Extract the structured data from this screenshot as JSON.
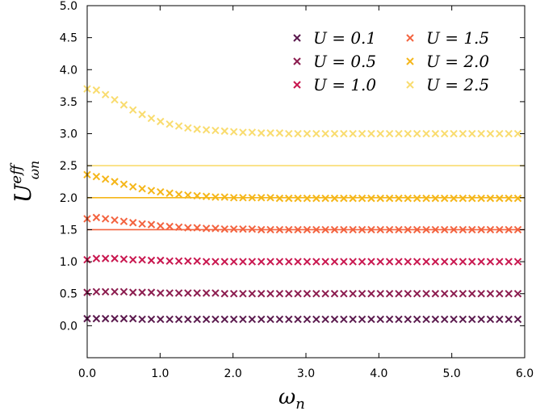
{
  "chart_data": {
    "type": "scatter",
    "xlabel": "ω",
    "xlabel_sub": "n",
    "ylabel": "U",
    "ylabel_sup": "eff",
    "ylabel_sub": "ωn",
    "xlim": [
      0,
      6
    ],
    "ylim": [
      -0.5,
      5.0
    ],
    "xticks": [
      0,
      1,
      2,
      3,
      4,
      5,
      6
    ],
    "xtick_labels": [
      "0.0",
      "1.0",
      "2.0",
      "3.0",
      "4.0",
      "5.0",
      "6.0"
    ],
    "yticks": [
      0,
      0.5,
      1,
      1.5,
      2,
      2.5,
      3,
      3.5,
      4,
      4.5,
      5
    ],
    "ytick_labels": [
      "0.0",
      "0.5",
      "1.0",
      "1.5",
      "2.0",
      "2.5",
      "3.0",
      "3.5",
      "4.0",
      "4.5",
      "5.0"
    ],
    "grid": false,
    "legend_position": "top-right",
    "marker": "×",
    "x": [
      0.0,
      0.126,
      0.251,
      0.377,
      0.503,
      0.628,
      0.754,
      0.88,
      1.005,
      1.131,
      1.257,
      1.382,
      1.508,
      1.634,
      1.759,
      1.885,
      2.011,
      2.136,
      2.262,
      2.388,
      2.513,
      2.639,
      2.765,
      2.89,
      3.016,
      3.142,
      3.267,
      3.393,
      3.519,
      3.644,
      3.77,
      3.896,
      4.021,
      4.147,
      4.273,
      4.398,
      4.524,
      4.65,
      4.775,
      4.901,
      5.027,
      5.152,
      5.278,
      5.404,
      5.529,
      5.655,
      5.781,
      5.906
    ],
    "series": [
      {
        "name": "U = 0.1",
        "color": "#5b1a4e",
        "U": 0.1,
        "values": [
          0.11,
          0.11,
          0.11,
          0.11,
          0.11,
          0.11,
          0.1,
          0.1,
          0.1,
          0.1,
          0.1,
          0.1,
          0.1,
          0.1,
          0.1,
          0.1,
          0.1,
          0.1,
          0.1,
          0.1,
          0.1,
          0.1,
          0.1,
          0.1,
          0.1,
          0.1,
          0.1,
          0.1,
          0.1,
          0.1,
          0.1,
          0.1,
          0.1,
          0.1,
          0.1,
          0.1,
          0.1,
          0.1,
          0.1,
          0.1,
          0.1,
          0.1,
          0.1,
          0.1,
          0.1,
          0.1,
          0.1,
          0.1
        ]
      },
      {
        "name": "U = 0.5",
        "color": "#8c1d4f",
        "U": 0.5,
        "values": [
          0.52,
          0.53,
          0.53,
          0.53,
          0.53,
          0.52,
          0.52,
          0.52,
          0.51,
          0.51,
          0.51,
          0.51,
          0.51,
          0.51,
          0.51,
          0.5,
          0.5,
          0.5,
          0.5,
          0.5,
          0.5,
          0.5,
          0.5,
          0.5,
          0.5,
          0.5,
          0.5,
          0.5,
          0.5,
          0.5,
          0.5,
          0.5,
          0.5,
          0.5,
          0.5,
          0.5,
          0.5,
          0.5,
          0.5,
          0.5,
          0.5,
          0.5,
          0.5,
          0.5,
          0.5,
          0.5,
          0.5,
          0.5
        ]
      },
      {
        "name": "U = 1.0",
        "color": "#c9174f",
        "U": 1.0,
        "values": [
          1.03,
          1.05,
          1.05,
          1.05,
          1.04,
          1.03,
          1.03,
          1.02,
          1.02,
          1.01,
          1.01,
          1.01,
          1.01,
          1.0,
          1.0,
          1.0,
          1.0,
          1.0,
          1.0,
          1.0,
          1.0,
          1.0,
          1.0,
          1.0,
          1.0,
          1.0,
          1.0,
          1.0,
          1.0,
          1.0,
          1.0,
          1.0,
          1.0,
          1.0,
          1.0,
          1.0,
          1.0,
          1.0,
          1.0,
          1.0,
          1.0,
          1.0,
          1.0,
          1.0,
          1.0,
          1.0,
          1.0,
          1.0
        ]
      },
      {
        "name": "U = 1.5",
        "color": "#f3633f",
        "U": 1.5,
        "values": [
          1.67,
          1.69,
          1.67,
          1.65,
          1.63,
          1.61,
          1.59,
          1.58,
          1.56,
          1.55,
          1.54,
          1.53,
          1.53,
          1.52,
          1.52,
          1.51,
          1.51,
          1.51,
          1.51,
          1.5,
          1.5,
          1.5,
          1.5,
          1.5,
          1.5,
          1.5,
          1.5,
          1.5,
          1.5,
          1.5,
          1.5,
          1.5,
          1.5,
          1.5,
          1.5,
          1.5,
          1.5,
          1.5,
          1.5,
          1.5,
          1.5,
          1.5,
          1.5,
          1.5,
          1.5,
          1.5,
          1.5,
          1.5
        ]
      },
      {
        "name": "U = 2.0",
        "color": "#f5b619",
        "U": 2.0,
        "values": [
          2.36,
          2.33,
          2.29,
          2.25,
          2.21,
          2.17,
          2.14,
          2.11,
          2.09,
          2.07,
          2.05,
          2.04,
          2.03,
          2.02,
          2.01,
          2.01,
          2.0,
          2.0,
          2.0,
          2.0,
          2.0,
          1.99,
          1.99,
          1.99,
          1.99,
          1.99,
          1.99,
          1.99,
          1.99,
          1.99,
          1.99,
          1.99,
          1.99,
          1.99,
          1.99,
          1.99,
          1.99,
          1.99,
          1.99,
          1.99,
          1.99,
          1.99,
          1.99,
          1.99,
          1.99,
          1.99,
          1.99,
          1.99
        ]
      },
      {
        "name": "U = 2.5",
        "color": "#f9dc6f",
        "U": 2.5,
        "values": [
          3.7,
          3.68,
          3.61,
          3.53,
          3.45,
          3.37,
          3.3,
          3.24,
          3.19,
          3.15,
          3.12,
          3.09,
          3.07,
          3.06,
          3.05,
          3.04,
          3.03,
          3.02,
          3.02,
          3.01,
          3.01,
          3.01,
          3.0,
          3.0,
          3.0,
          3.0,
          3.0,
          3.0,
          3.0,
          3.0,
          3.0,
          3.0,
          3.0,
          3.0,
          3.0,
          3.0,
          3.0,
          3.0,
          3.0,
          3.0,
          3.0,
          3.0,
          3.0,
          3.0,
          3.0,
          3.0,
          3.0,
          3.0
        ]
      }
    ]
  }
}
